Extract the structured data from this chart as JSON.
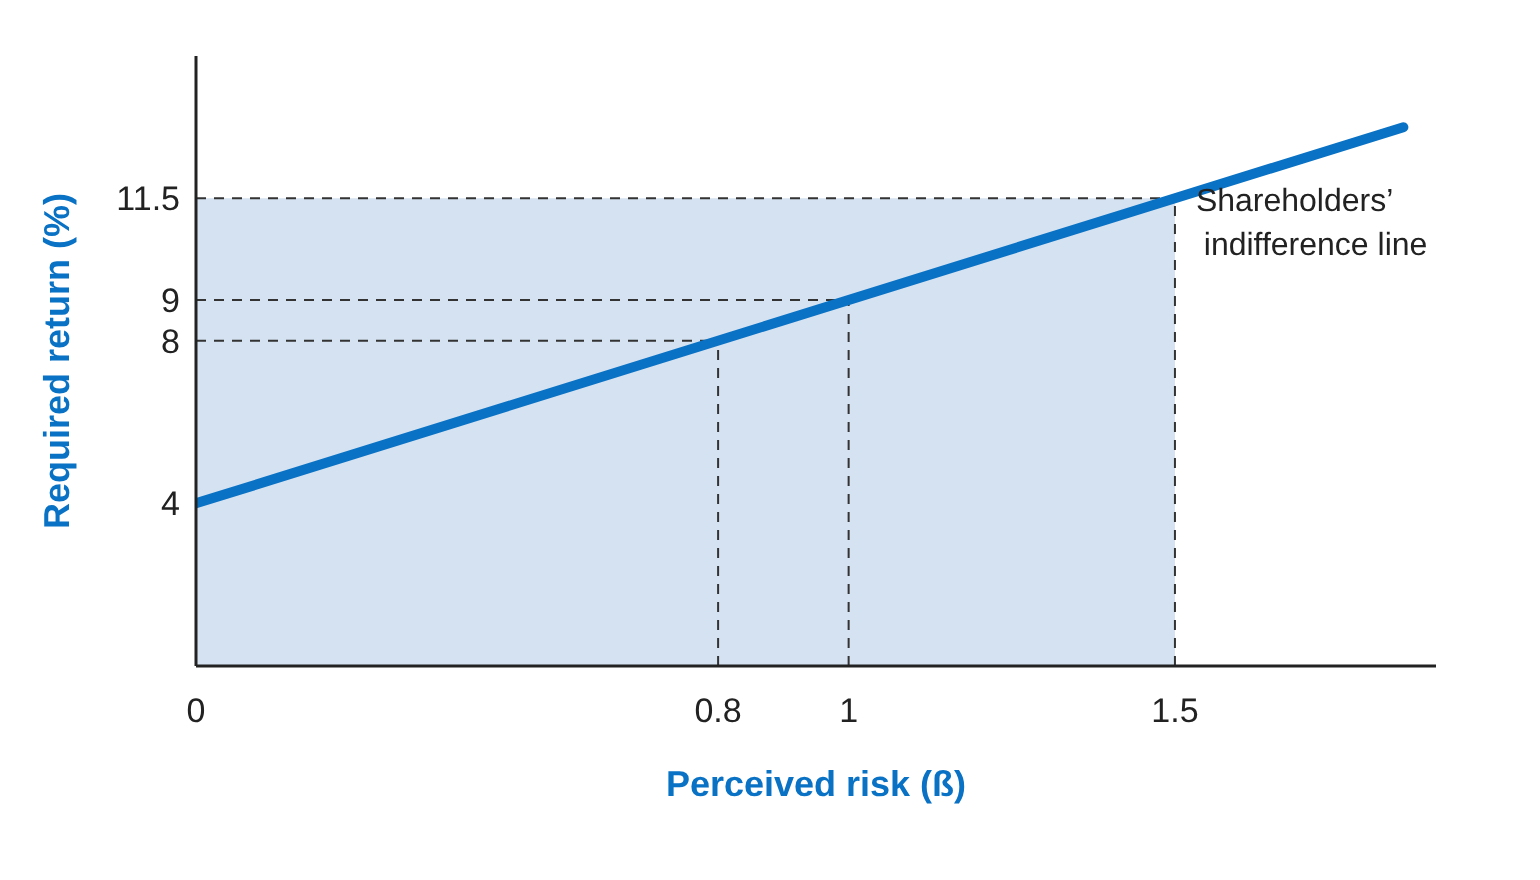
{
  "chart_data": {
    "type": "line",
    "xlabel": "Perceived risk (ß)",
    "ylabel": "Required return (%)",
    "xlim": [
      0,
      1.9
    ],
    "ylim": [
      0,
      15
    ],
    "xticks": [
      0,
      0.8,
      1,
      1.5
    ],
    "yticks": [
      4,
      8,
      9,
      11.5
    ],
    "grid": false,
    "legend": false,
    "marker": "none",
    "line_style": "solid",
    "series": [
      {
        "type": "area",
        "color": "#d5e2f1",
        "x": [
          0,
          1.5
        ],
        "values": [
          11.5,
          11.5
        ]
      },
      {
        "name": "Shareholders’ indifference line",
        "color": "#0a72c4",
        "x": [
          0,
          1.5,
          1.85
        ],
        "values": [
          4,
          11.5,
          13.25
        ]
      }
    ],
    "ref_lines": [
      {
        "axis": "y",
        "value": 11.5,
        "color": "#333333",
        "line_style": "dashed"
      },
      {
        "axis": "y",
        "value": 9,
        "color": "#333333",
        "line_style": "dashed"
      },
      {
        "axis": "y",
        "value": 8,
        "color": "#333333",
        "line_style": "dashed"
      },
      {
        "axis": "x",
        "value": 0.8,
        "color": "#333333",
        "line_style": "dashed"
      },
      {
        "axis": "x",
        "value": 1,
        "color": "#333333",
        "line_style": "dashed"
      },
      {
        "axis": "x",
        "value": 1.5,
        "color": "#333333",
        "line_style": "dashed"
      }
    ]
  }
}
